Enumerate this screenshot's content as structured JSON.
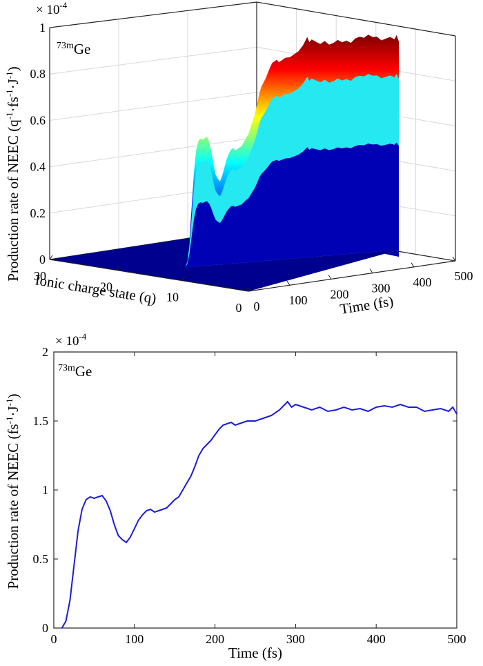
{
  "chart_data": [
    {
      "type": "surface",
      "panel": "top",
      "annotation": {
        "iso": "73m",
        "element": "Ge"
      },
      "z_multiplier": "× 10",
      "z_multiplier_exp": "-4",
      "zlabel": {
        "prefix": "Production rate of NEEC (q",
        "sup1": "-1",
        "mid1": "·fs",
        "sup2": "-1",
        "mid2": "·J",
        "sup3": "-1",
        "suffix": ")"
      },
      "xlabel": "Time (fs)",
      "ylabel": "Ionic charge state (q)",
      "xlim": [
        0,
        500
      ],
      "ylim": [
        0,
        30
      ],
      "zlim": [
        0,
        1
      ],
      "xticks": [
        0,
        100,
        200,
        300,
        400,
        500
      ],
      "yticks": [
        0,
        10,
        20,
        30
      ],
      "zticks": [
        0,
        0.2,
        0.4,
        0.6,
        0.8,
        1
      ],
      "zticklabels": [
        "0",
        "0.2",
        "0.4",
        "0.6",
        "0.8",
        "1"
      ],
      "colormap": "jet",
      "colors": [
        "#00007f",
        "#0000ff",
        "#00ffff",
        "#ffff00",
        "#ff0000",
        "#7f0000"
      ]
    },
    {
      "type": "line",
      "panel": "bottom",
      "annotation": {
        "iso": "73m",
        "element": "Ge"
      },
      "y_multiplier": "× 10",
      "y_multiplier_exp": "-4",
      "xlabel": "Time (fs)",
      "ylabel": {
        "prefix": "Production rate of NEEC (fs",
        "sup1": "-1",
        "mid": "·J",
        "sup2": "-1",
        "suffix": ")"
      },
      "xlim": [
        0,
        500
      ],
      "ylim": [
        0,
        2
      ],
      "xticks": [
        0,
        100,
        200,
        300,
        400,
        500
      ],
      "yticks": [
        0,
        0.5,
        1,
        1.5,
        2
      ],
      "yticklabels": [
        "0",
        "0.5",
        "1",
        "1.5",
        "2"
      ],
      "line_color": "#1a1adc",
      "series": [
        {
          "x": [
            10,
            15,
            20,
            25,
            30,
            35,
            40,
            45,
            50,
            55,
            60,
            65,
            70,
            75,
            80,
            85,
            90,
            95,
            100,
            105,
            110,
            115,
            120,
            125,
            130,
            135,
            140,
            145,
            150,
            155,
            160,
            165,
            170,
            175,
            180,
            185,
            190,
            195,
            200,
            205,
            210,
            215,
            220,
            225,
            230,
            240,
            250,
            260,
            270,
            280,
            290,
            295,
            300,
            310,
            320,
            330,
            340,
            350,
            360,
            370,
            380,
            390,
            400,
            410,
            420,
            430,
            440,
            450,
            460,
            470,
            480,
            490,
            495,
            500
          ],
          "y": [
            0.0,
            0.05,
            0.2,
            0.45,
            0.7,
            0.86,
            0.93,
            0.95,
            0.94,
            0.95,
            0.96,
            0.92,
            0.85,
            0.75,
            0.67,
            0.64,
            0.62,
            0.66,
            0.72,
            0.78,
            0.82,
            0.85,
            0.86,
            0.84,
            0.85,
            0.86,
            0.87,
            0.9,
            0.93,
            0.95,
            1.0,
            1.05,
            1.1,
            1.17,
            1.25,
            1.3,
            1.33,
            1.36,
            1.4,
            1.44,
            1.47,
            1.48,
            1.49,
            1.47,
            1.48,
            1.5,
            1.5,
            1.52,
            1.54,
            1.58,
            1.64,
            1.6,
            1.62,
            1.6,
            1.58,
            1.6,
            1.57,
            1.58,
            1.6,
            1.58,
            1.59,
            1.57,
            1.6,
            1.61,
            1.6,
            1.62,
            1.6,
            1.6,
            1.57,
            1.58,
            1.59,
            1.57,
            1.6,
            1.55
          ]
        }
      ]
    }
  ]
}
